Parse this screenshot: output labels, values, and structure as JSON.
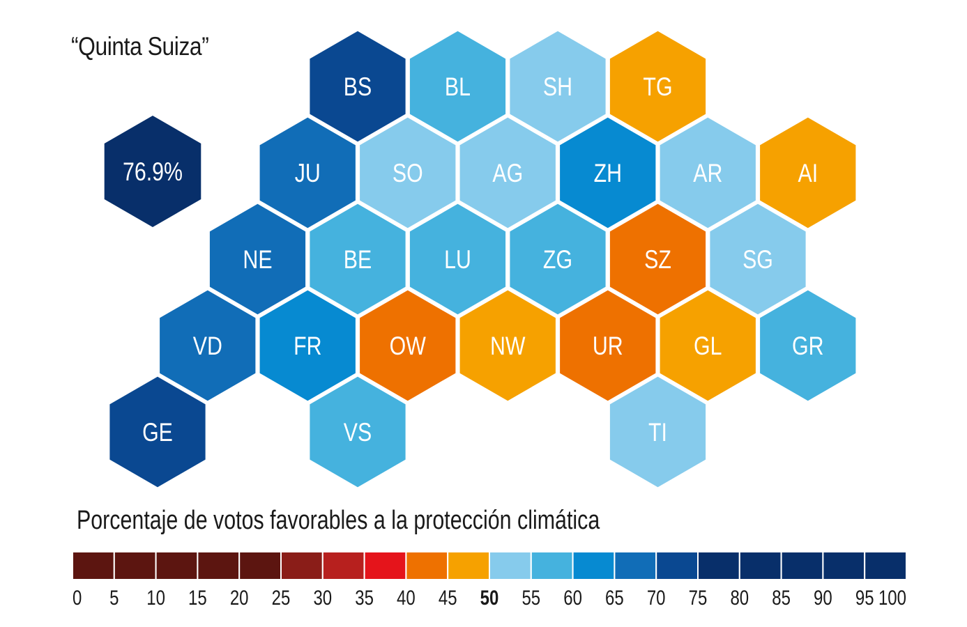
{
  "title": "“Quinta Suiza”",
  "summary": {
    "value": "76.9%",
    "color": "#082f6a"
  },
  "cantons": [
    {
      "code": "BS",
      "color": "#0a4891",
      "row": 0,
      "col": 2
    },
    {
      "code": "BL",
      "color": "#45b2de",
      "row": 0,
      "col": 3
    },
    {
      "code": "SH",
      "color": "#86cbec",
      "row": 0,
      "col": 4
    },
    {
      "code": "TG",
      "color": "#f6a100",
      "row": 0,
      "col": 5
    },
    {
      "code": "JU",
      "color": "#116db7",
      "row": 1,
      "col": 1
    },
    {
      "code": "SO",
      "color": "#86cbec",
      "row": 1,
      "col": 2
    },
    {
      "code": "AG",
      "color": "#86cbec",
      "row": 1,
      "col": 3
    },
    {
      "code": "ZH",
      "color": "#078ad1",
      "row": 1,
      "col": 4
    },
    {
      "code": "AR",
      "color": "#86cbec",
      "row": 1,
      "col": 5
    },
    {
      "code": "AI",
      "color": "#f6a100",
      "row": 1,
      "col": 6
    },
    {
      "code": "NE",
      "color": "#116db7",
      "row": 2,
      "col": 1
    },
    {
      "code": "BE",
      "color": "#45b2de",
      "row": 2,
      "col": 2
    },
    {
      "code": "LU",
      "color": "#45b2de",
      "row": 2,
      "col": 3
    },
    {
      "code": "ZG",
      "color": "#45b2de",
      "row": 2,
      "col": 4
    },
    {
      "code": "SZ",
      "color": "#ee7100",
      "row": 2,
      "col": 5
    },
    {
      "code": "SG",
      "color": "#86cbec",
      "row": 2,
      "col": 6
    },
    {
      "code": "VD",
      "color": "#116db7",
      "row": 3,
      "col": 0
    },
    {
      "code": "FR",
      "color": "#078ad1",
      "row": 3,
      "col": 1
    },
    {
      "code": "OW",
      "color": "#ee7100",
      "row": 3,
      "col": 2
    },
    {
      "code": "NW",
      "color": "#f6a100",
      "row": 3,
      "col": 3
    },
    {
      "code": "UR",
      "color": "#ee7100",
      "row": 3,
      "col": 4
    },
    {
      "code": "GL",
      "color": "#f6a100",
      "row": 3,
      "col": 5
    },
    {
      "code": "GR",
      "color": "#45b2de",
      "row": 3,
      "col": 6
    },
    {
      "code": "GE",
      "color": "#0a4891",
      "row": 4,
      "col": 0
    },
    {
      "code": "VS",
      "color": "#45b2de",
      "row": 4,
      "col": 2
    },
    {
      "code": "TI",
      "color": "#86cbec",
      "row": 4,
      "col": 5
    }
  ],
  "legend": {
    "title": "Porcentaje de votos favorables a la protección climática",
    "swatches": [
      "#5c1510",
      "#5c1510",
      "#5c1510",
      "#5c1510",
      "#5c1510",
      "#8a1d18",
      "#b7201e",
      "#e5141b",
      "#ee7100",
      "#f6a100",
      "#86cbec",
      "#45b2de",
      "#078ad1",
      "#116db7",
      "#0a4891",
      "#082f6a",
      "#082f6a",
      "#082f6a",
      "#082f6a",
      "#082f6a"
    ],
    "ticks": [
      "0",
      "5",
      "10",
      "15",
      "20",
      "25",
      "30",
      "35",
      "40",
      "45",
      "50",
      "55",
      "60",
      "65",
      "70",
      "75",
      "80",
      "85",
      "90",
      "95",
      "100"
    ],
    "bold_tick": "50"
  }
}
